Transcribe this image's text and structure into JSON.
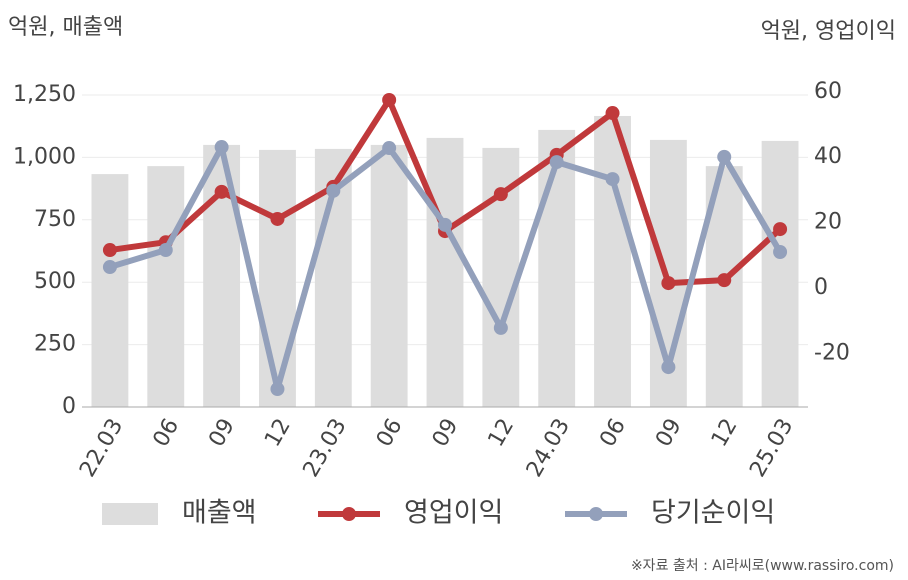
{
  "chart_data": {
    "type": "bar_line",
    "y_title": "억원, 매출액",
    "y2_title": "억원, 영업이익",
    "source": "※자료 출처 : AI라씨로(www.rassiro.com)",
    "categories": [
      "22.03",
      "06",
      "09",
      "12",
      "23.03",
      "06",
      "09",
      "12",
      "24.03",
      "06",
      "09",
      "12",
      "25.03"
    ],
    "series": [
      {
        "name": "매출액",
        "type": "bar",
        "color": "#dddddd",
        "values": [
          933,
          965,
          1050,
          1030,
          1034,
          1050,
          1078,
          1038,
          1110,
          1166,
          1070,
          965,
          1066
        ]
      },
      {
        "name": "영업이익",
        "type": "line",
        "axis": "y2",
        "color": "#c0393b",
        "values": [
          11.6,
          14,
          29.4,
          21.1,
          30.9,
          57.5,
          17.4,
          28.7,
          40.7,
          53.5,
          1.5,
          2.4,
          18
        ]
      },
      {
        "name": "당기순이익",
        "type": "line",
        "axis": "y2",
        "color": "#93a0bb",
        "values": [
          6.4,
          11.6,
          43.1,
          -30.9,
          29.7,
          42.8,
          19.3,
          -12.2,
          38.5,
          33.3,
          -24.2,
          40.1,
          11
        ]
      }
    ],
    "ylim": [
      0,
      1310
    ],
    "yticks": [
      0,
      250,
      500,
      750,
      {
        "value": 1000,
        "label": "1,000"
      },
      {
        "value": 1250,
        "label": "1,250"
      }
    ],
    "y2lim": [
      -36.4,
      63.6
    ],
    "y2ticks": [
      -20,
      0,
      20,
      40,
      60
    ],
    "grid": true,
    "legend": "bottom"
  }
}
